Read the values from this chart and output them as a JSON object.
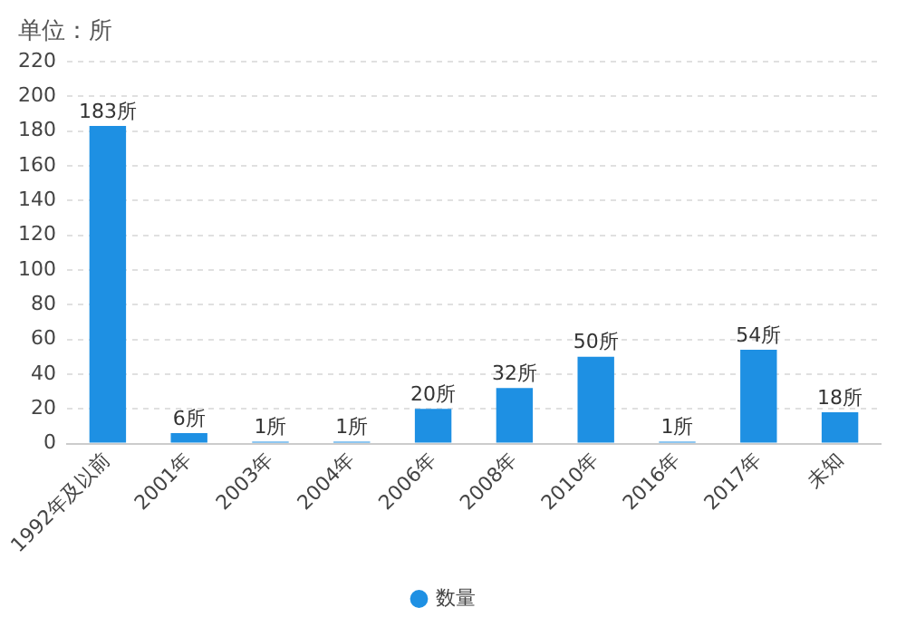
{
  "chart_data": {
    "type": "bar",
    "ylabel": "单位：所",
    "categories": [
      "1992年及以前",
      "2001年",
      "2003年",
      "2004年",
      "2006年",
      "2008年",
      "2010年",
      "2016年",
      "2017年",
      "未知"
    ],
    "series": [
      {
        "name": "数量",
        "color": "#1e90e3",
        "values": [
          183,
          6,
          1,
          1,
          20,
          32,
          50,
          1,
          54,
          18
        ],
        "value_labels": [
          "183所",
          "6所",
          "1所",
          "1所",
          "20所",
          "32所",
          "50所",
          "1所",
          "54所",
          "18所"
        ]
      }
    ],
    "ylim": [
      0,
      220
    ],
    "yticks": [
      0,
      20,
      40,
      60,
      80,
      100,
      120,
      140,
      160,
      180,
      200,
      220
    ],
    "grid": "y",
    "legend": "bottom",
    "marker": "circle"
  }
}
